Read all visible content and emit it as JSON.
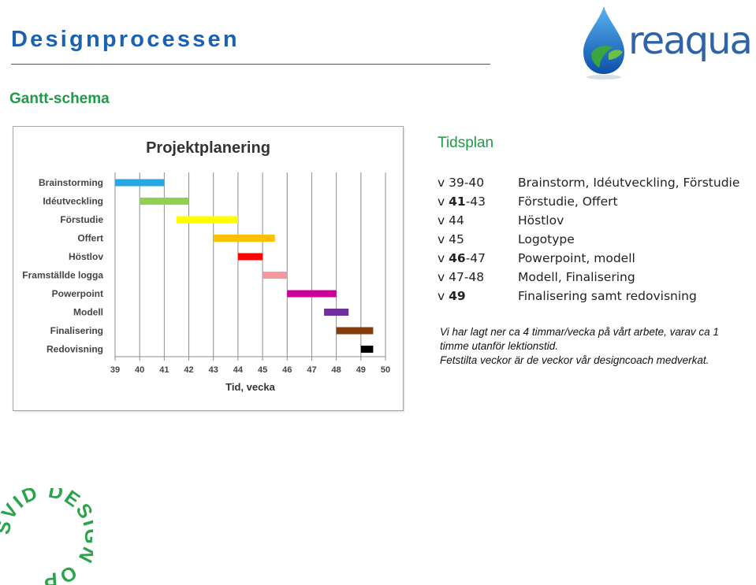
{
  "page": {
    "title": "Designprocessen",
    "subtitle": "Gantt-schema"
  },
  "logo": {
    "text": "reaqua",
    "water_color": "#1a6fcf",
    "leaf_color": "#3aa63f"
  },
  "badge": {
    "text": "SVID DESIGN OPEN",
    "color": "#2aa34a"
  },
  "chart_data": {
    "type": "gantt",
    "title": "Projektplanering",
    "xlabel": "Tid, vecka",
    "ylabel": "",
    "xlim": [
      39,
      50
    ],
    "x_ticks": [
      "39",
      "40",
      "41",
      "42",
      "43",
      "44",
      "45",
      "46",
      "47",
      "48",
      "49",
      "50"
    ],
    "grid": true,
    "tasks": [
      {
        "name": "Brainstorming",
        "start": 39,
        "end": 41,
        "color": "#27a8e0"
      },
      {
        "name": "Idéutveckling",
        "start": 40,
        "end": 42,
        "color": "#92d050"
      },
      {
        "name": "Förstudie",
        "start": 41.5,
        "end": 44,
        "color": "#ffff00"
      },
      {
        "name": "Offert",
        "start": 43,
        "end": 45.5,
        "color": "#ffc000"
      },
      {
        "name": "Höstlov",
        "start": 44,
        "end": 45,
        "color": "#ff0000"
      },
      {
        "name": "Framställde logga",
        "start": 45,
        "end": 46,
        "color": "#f7969e"
      },
      {
        "name": "Powerpoint",
        "start": 46,
        "end": 48,
        "color": "#cc0099"
      },
      {
        "name": "Modell",
        "start": 47.5,
        "end": 48.5,
        "color": "#7030a0"
      },
      {
        "name": "Finalisering",
        "start": 48,
        "end": 49.5,
        "color": "#843c0c"
      },
      {
        "name": "Redovisning",
        "start": 49,
        "end": 49.5,
        "color": "#000000"
      }
    ]
  },
  "schedule": {
    "heading": "Tidsplan",
    "rows": [
      {
        "pre": "v 39-40",
        "bold": "",
        "post": "",
        "task": "Brainstorm, Idéutveckling, Förstudie"
      },
      {
        "pre": "v ",
        "bold": "41",
        "post": "-43",
        "task": "Förstudie, Offert"
      },
      {
        "pre": "v 44",
        "bold": "",
        "post": "",
        "task": "Höstlov"
      },
      {
        "pre": "v 45",
        "bold": "",
        "post": "",
        "task": "Logotype"
      },
      {
        "pre": "v ",
        "bold": "46",
        "post": "-47",
        "task": "Powerpoint, modell"
      },
      {
        "pre": "v 47-48",
        "bold": "",
        "post": "",
        "task": "Modell, Finalisering"
      },
      {
        "pre": "v ",
        "bold": "49",
        "post": "",
        "task": "Finalisering samt redovisning"
      }
    ]
  },
  "note": {
    "line1": "Vi har lagt ner ca 4 timmar/vecka på vårt arbete, varav ca 1 timme utanför lektionstid.",
    "line2": "Fetstilta veckor är de veckor vår designcoach medverkat."
  }
}
